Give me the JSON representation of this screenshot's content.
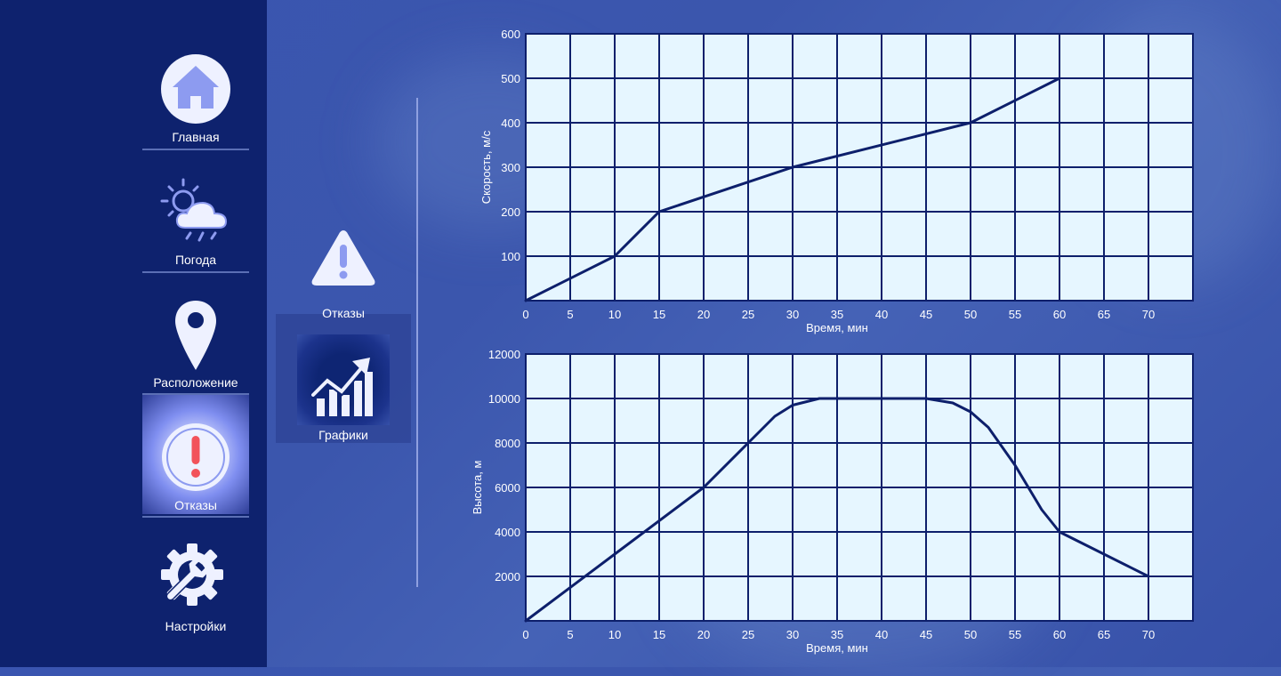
{
  "nav": {
    "items": [
      {
        "label": "Главная",
        "icon": "home-icon"
      },
      {
        "label": "Погода",
        "icon": "weather-icon"
      },
      {
        "label": "Расположение",
        "icon": "location-pin-icon"
      },
      {
        "label": "Отказы",
        "icon": "failure-alert-icon",
        "active": true
      },
      {
        "label": "Настройки",
        "icon": "settings-gear-icon"
      }
    ]
  },
  "submenu": {
    "items": [
      {
        "label": "Отказы",
        "icon": "warning-triangle-icon"
      },
      {
        "label": "Графики",
        "icon": "growth-chart-icon",
        "active": true
      }
    ]
  },
  "colors": {
    "sidebar": "#0e226e",
    "plot_bg": "#e6f6ff",
    "grid": "#0d1f6b",
    "line": "#0d1f6b",
    "accent_red": "#f2525a"
  },
  "chart_data": [
    {
      "type": "line",
      "xlabel": "Время, мин",
      "ylabel": "Скорость, м/с",
      "xlim": [
        0,
        75
      ],
      "ylim": [
        0,
        600
      ],
      "x_ticks": [
        0,
        5,
        10,
        15,
        20,
        25,
        30,
        35,
        40,
        45,
        50,
        55,
        60,
        65,
        70
      ],
      "y_ticks": [
        100,
        200,
        300,
        400,
        500,
        600
      ],
      "grid": true,
      "series": [
        {
          "x": [
            0,
            10,
            15,
            30,
            50,
            60
          ],
          "y": [
            0,
            100,
            200,
            300,
            400,
            500
          ]
        }
      ]
    },
    {
      "type": "line",
      "xlabel": "Время, мин",
      "ylabel": "Высота, м",
      "xlim": [
        0,
        75
      ],
      "ylim": [
        0,
        12000
      ],
      "x_ticks": [
        0,
        5,
        10,
        15,
        20,
        25,
        30,
        35,
        40,
        45,
        50,
        55,
        60,
        65,
        70
      ],
      "y_ticks": [
        2000,
        4000,
        6000,
        8000,
        10000,
        12000
      ],
      "grid": true,
      "series": [
        {
          "x": [
            0,
            10,
            20,
            25,
            28,
            30,
            33,
            35,
            45,
            48,
            50,
            52,
            55,
            58,
            60,
            62,
            70
          ],
          "y": [
            0,
            3000,
            6000,
            8000,
            9200,
            9700,
            10000,
            10000,
            10000,
            9800,
            9400,
            8700,
            7000,
            5000,
            4000,
            3600,
            2000
          ]
        }
      ]
    }
  ]
}
